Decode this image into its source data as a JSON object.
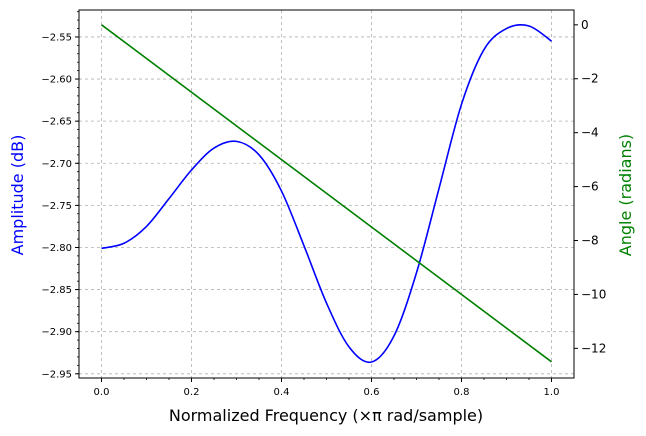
{
  "chart_data": {
    "type": "line",
    "xlabel": "Normalized Frequency (×π rad/sample)",
    "ylabel_left": "Amplitude (dB)",
    "ylabel_right": "Angle (radians)",
    "xlim": [
      -0.05,
      1.05
    ],
    "ylim_left": [
      -2.955,
      -2.518
    ],
    "ylim_right": [
      -13.1,
      0.55
    ],
    "xticks": [
      0.0,
      0.2,
      0.4,
      0.6,
      0.8,
      1.0
    ],
    "xtick_labels": [
      "0.0",
      "0.2",
      "0.4",
      "0.6",
      "0.8",
      "1.0"
    ],
    "yticks_left": [
      -2.55,
      -2.6,
      -2.65,
      -2.7,
      -2.75,
      -2.8,
      -2.85,
      -2.9,
      -2.95
    ],
    "ytick_labels_left": [
      "−2.55",
      "−2.60",
      "−2.65",
      "−2.70",
      "−2.75",
      "−2.80",
      "−2.85",
      "−2.90",
      "−2.95"
    ],
    "yticks_right": [
      0,
      -2,
      -4,
      -6,
      -8,
      -10,
      -12
    ],
    "ytick_labels_right": [
      "0",
      "−2",
      "−4",
      "−6",
      "−8",
      "−10",
      "−12"
    ],
    "grid": true,
    "series": [
      {
        "axis": "left",
        "color": "#0000ff",
        "x": [
          0.0,
          0.05,
          0.1,
          0.15,
          0.2,
          0.25,
          0.3,
          0.35,
          0.4,
          0.45,
          0.5,
          0.55,
          0.6,
          0.65,
          0.7,
          0.75,
          0.8,
          0.85,
          0.9,
          0.95,
          1.0
        ],
        "values": [
          -2.801,
          -2.795,
          -2.775,
          -2.742,
          -2.708,
          -2.682,
          -2.674,
          -2.69,
          -2.733,
          -2.798,
          -2.866,
          -2.918,
          -2.936,
          -2.905,
          -2.83,
          -2.73,
          -2.63,
          -2.565,
          -2.54,
          -2.537,
          -2.555
        ]
      },
      {
        "axis": "right",
        "color": "#008000",
        "x": [
          0.0,
          1.0
        ],
        "values": [
          0.0,
          -12.5
        ]
      }
    ]
  }
}
